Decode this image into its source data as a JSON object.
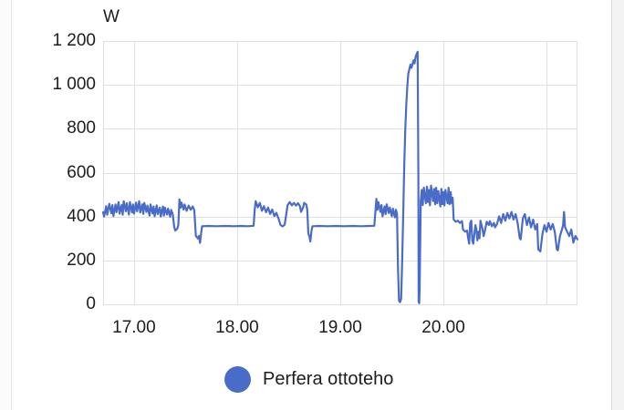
{
  "page": {
    "background": "#ffffff",
    "unit_label": "W"
  },
  "legend": {
    "series_label": "Perfera ottoteho",
    "marker_color": "#4a6cc9"
  },
  "chart_data": {
    "type": "line",
    "title": "",
    "ylabel_unit": "W",
    "xlim": [
      16.7,
      21.3
    ],
    "ylim": [
      0,
      1200
    ],
    "grid": true,
    "legend_position": "bottom",
    "line_color": "#4a6cc9",
    "grid_color": "#e0e0e0",
    "text_color": "#1d1d1d",
    "x_ticks": [
      {
        "v": 17,
        "label": "17.00"
      },
      {
        "v": 18,
        "label": "18.00"
      },
      {
        "v": 19,
        "label": "19.00"
      },
      {
        "v": 20,
        "label": "20.00"
      }
    ],
    "x_grid": [
      17,
      18,
      19,
      20,
      21
    ],
    "y_ticks": [
      {
        "v": 0,
        "label": "0"
      },
      {
        "v": 200,
        "label": "200"
      },
      {
        "v": 400,
        "label": "400"
      },
      {
        "v": 600,
        "label": "600"
      },
      {
        "v": 800,
        "label": "800"
      },
      {
        "v": 1000,
        "label": "1 000"
      },
      {
        "v": 1200,
        "label": "1 200"
      }
    ],
    "series": [
      {
        "name": "Perfera ottoteho",
        "points": [
          [
            16.7,
            420
          ],
          [
            16.71,
            400
          ],
          [
            16.73,
            447
          ],
          [
            16.74,
            408
          ],
          [
            16.76,
            458
          ],
          [
            16.78,
            415
          ],
          [
            16.79,
            452
          ],
          [
            16.8,
            402
          ],
          [
            16.82,
            455
          ],
          [
            16.83,
            420
          ],
          [
            16.85,
            466
          ],
          [
            16.86,
            413
          ],
          [
            16.88,
            452
          ],
          [
            16.89,
            408
          ],
          [
            16.9,
            470
          ],
          [
            16.92,
            424
          ],
          [
            16.93,
            461
          ],
          [
            16.95,
            409
          ],
          [
            16.96,
            466
          ],
          [
            16.98,
            419
          ],
          [
            16.99,
            455
          ],
          [
            17.0,
            413
          ],
          [
            17.02,
            464
          ],
          [
            17.03,
            424
          ],
          [
            17.05,
            470
          ],
          [
            17.06,
            418
          ],
          [
            17.08,
            456
          ],
          [
            17.09,
            412
          ],
          [
            17.1,
            462
          ],
          [
            17.12,
            421
          ],
          [
            17.13,
            450
          ],
          [
            17.15,
            404
          ],
          [
            17.16,
            455
          ],
          [
            17.18,
            414
          ],
          [
            17.19,
            446
          ],
          [
            17.2,
            401
          ],
          [
            17.22,
            451
          ],
          [
            17.23,
            411
          ],
          [
            17.25,
            441
          ],
          [
            17.26,
            400
          ],
          [
            17.28,
            446
          ],
          [
            17.29,
            404
          ],
          [
            17.3,
            440
          ],
          [
            17.32,
            409
          ],
          [
            17.33,
            436
          ],
          [
            17.35,
            399
          ],
          [
            17.36,
            430
          ],
          [
            17.375,
            412
          ],
          [
            17.39,
            352
          ],
          [
            17.4,
            336
          ],
          [
            17.42,
            346
          ],
          [
            17.43,
            362
          ],
          [
            17.44,
            478
          ],
          [
            17.45,
            440
          ],
          [
            17.46,
            464
          ],
          [
            17.48,
            432
          ],
          [
            17.49,
            455
          ],
          [
            17.51,
            426
          ],
          [
            17.53,
            450
          ],
          [
            17.55,
            431
          ],
          [
            17.57,
            446
          ],
          [
            17.585,
            428
          ],
          [
            17.6,
            312
          ],
          [
            17.62,
            300
          ],
          [
            17.63,
            312
          ],
          [
            17.64,
            280
          ],
          [
            17.65,
            322
          ],
          [
            17.66,
            356
          ],
          [
            17.72,
            357
          ],
          [
            17.8,
            356
          ],
          [
            17.88,
            357
          ],
          [
            17.96,
            356
          ],
          [
            18.04,
            357
          ],
          [
            18.1,
            356
          ],
          [
            18.16,
            358
          ],
          [
            18.17,
            432
          ],
          [
            18.18,
            470
          ],
          [
            18.2,
            442
          ],
          [
            18.22,
            462
          ],
          [
            18.24,
            426
          ],
          [
            18.26,
            447
          ],
          [
            18.28,
            420
          ],
          [
            18.3,
            441
          ],
          [
            18.32,
            412
          ],
          [
            18.34,
            432
          ],
          [
            18.36,
            402
          ],
          [
            18.38,
            417
          ],
          [
            18.4,
            392
          ],
          [
            18.42,
            362
          ],
          [
            18.44,
            355
          ],
          [
            18.46,
            362
          ],
          [
            18.49,
            452
          ],
          [
            18.51,
            466
          ],
          [
            18.53,
            451
          ],
          [
            18.55,
            462
          ],
          [
            18.57,
            450
          ],
          [
            18.59,
            461
          ],
          [
            18.61,
            446
          ],
          [
            18.62,
            421
          ],
          [
            18.64,
            442
          ],
          [
            18.65,
            462
          ],
          [
            18.67,
            455
          ],
          [
            18.68,
            432
          ],
          [
            18.69,
            322
          ],
          [
            18.7,
            310
          ],
          [
            18.71,
            286
          ],
          [
            18.72,
            331
          ],
          [
            18.73,
            356
          ],
          [
            18.8,
            357
          ],
          [
            18.88,
            356
          ],
          [
            18.96,
            357
          ],
          [
            19.04,
            356
          ],
          [
            19.12,
            357
          ],
          [
            19.2,
            356
          ],
          [
            19.28,
            357
          ],
          [
            19.33,
            358
          ],
          [
            19.35,
            481
          ],
          [
            19.36,
            430
          ],
          [
            19.37,
            466
          ],
          [
            19.39,
            421
          ],
          [
            19.4,
            452
          ],
          [
            19.41,
            401
          ],
          [
            19.43,
            446
          ],
          [
            19.44,
            411
          ],
          [
            19.45,
            456
          ],
          [
            19.47,
            416
          ],
          [
            19.48,
            441
          ],
          [
            19.5,
            401
          ],
          [
            19.51,
            436
          ],
          [
            19.53,
            396
          ],
          [
            19.54,
            431
          ],
          [
            19.55,
            412
          ],
          [
            19.56,
            160
          ],
          [
            19.57,
            16
          ],
          [
            19.58,
            10
          ],
          [
            19.59,
            25
          ],
          [
            19.6,
            190
          ],
          [
            19.61,
            410
          ],
          [
            19.62,
            630
          ],
          [
            19.63,
            790
          ],
          [
            19.64,
            905
          ],
          [
            19.65,
            995
          ],
          [
            19.66,
            1052
          ],
          [
            19.68,
            1092
          ],
          [
            19.69,
            1078
          ],
          [
            19.71,
            1112
          ],
          [
            19.72,
            1098
          ],
          [
            19.73,
            1126
          ],
          [
            19.74,
            1141
          ],
          [
            19.75,
            1151
          ],
          [
            19.757,
            580
          ],
          [
            19.76,
            12
          ],
          [
            19.765,
            5
          ],
          [
            19.77,
            70
          ],
          [
            19.78,
            472
          ],
          [
            19.79,
            521
          ],
          [
            19.8,
            452
          ],
          [
            19.81,
            532
          ],
          [
            19.83,
            461
          ],
          [
            19.84,
            536
          ],
          [
            19.85,
            466
          ],
          [
            19.86,
            521
          ],
          [
            19.87,
            451
          ],
          [
            19.88,
            541
          ],
          [
            19.9,
            471
          ],
          [
            19.91,
            526
          ],
          [
            19.92,
            456
          ],
          [
            19.93,
            531
          ],
          [
            19.94,
            461
          ],
          [
            19.95,
            516
          ],
          [
            19.97,
            446
          ],
          [
            19.98,
            526
          ],
          [
            19.99,
            456
          ],
          [
            20.0,
            511
          ],
          [
            20.01,
            451
          ],
          [
            20.02,
            521
          ],
          [
            20.04,
            461
          ],
          [
            20.05,
            531
          ],
          [
            20.06,
            456
          ],
          [
            20.07,
            511
          ],
          [
            20.08,
            461
          ],
          [
            20.09,
            486
          ],
          [
            20.1,
            386
          ],
          [
            20.12,
            376
          ],
          [
            20.14,
            381
          ],
          [
            20.16,
            371
          ],
          [
            20.18,
            379
          ],
          [
            20.19,
            341
          ],
          [
            20.21,
            331
          ],
          [
            20.23,
            336
          ],
          [
            20.24,
            301
          ],
          [
            20.25,
            276
          ],
          [
            20.26,
            371
          ],
          [
            20.27,
            381
          ],
          [
            20.28,
            291
          ],
          [
            20.29,
            276
          ],
          [
            20.31,
            361
          ],
          [
            20.32,
            341
          ],
          [
            20.33,
            291
          ],
          [
            20.34,
            331
          ],
          [
            20.35,
            301
          ],
          [
            20.36,
            381
          ],
          [
            20.38,
            341
          ],
          [
            20.39,
            311
          ],
          [
            20.4,
            331
          ],
          [
            20.42,
            376
          ],
          [
            20.44,
            361
          ],
          [
            20.45,
            379
          ],
          [
            20.47,
            356
          ],
          [
            20.49,
            371
          ],
          [
            20.5,
            351
          ],
          [
            20.52,
            366
          ],
          [
            20.54,
            401
          ],
          [
            20.56,
            371
          ],
          [
            20.58,
            411
          ],
          [
            20.6,
            381
          ],
          [
            20.62,
            416
          ],
          [
            20.64,
            391
          ],
          [
            20.66,
            421
          ],
          [
            20.68,
            386
          ],
          [
            20.7,
            411
          ],
          [
            20.72,
            371
          ],
          [
            20.74,
            301
          ],
          [
            20.75,
            296
          ],
          [
            20.77,
            391
          ],
          [
            20.79,
            411
          ],
          [
            20.81,
            361
          ],
          [
            20.83,
            396
          ],
          [
            20.85,
            351
          ],
          [
            20.87,
            386
          ],
          [
            20.89,
            341
          ],
          [
            20.91,
            366
          ],
          [
            20.92,
            251
          ],
          [
            20.94,
            241
          ],
          [
            20.96,
            321
          ],
          [
            20.98,
            361
          ],
          [
            21.0,
            331
          ],
          [
            21.02,
            371
          ],
          [
            21.04,
            341
          ],
          [
            21.06,
            366
          ],
          [
            21.08,
            331
          ],
          [
            21.1,
            251
          ],
          [
            21.11,
            246
          ],
          [
            21.13,
            311
          ],
          [
            21.15,
            341
          ],
          [
            21.16,
            361
          ],
          [
            21.17,
            421
          ],
          [
            21.18,
            351
          ],
          [
            21.2,
            331
          ],
          [
            21.22,
            311
          ],
          [
            21.24,
            341
          ],
          [
            21.26,
            281
          ],
          [
            21.28,
            311
          ],
          [
            21.3,
            296
          ]
        ]
      }
    ]
  }
}
